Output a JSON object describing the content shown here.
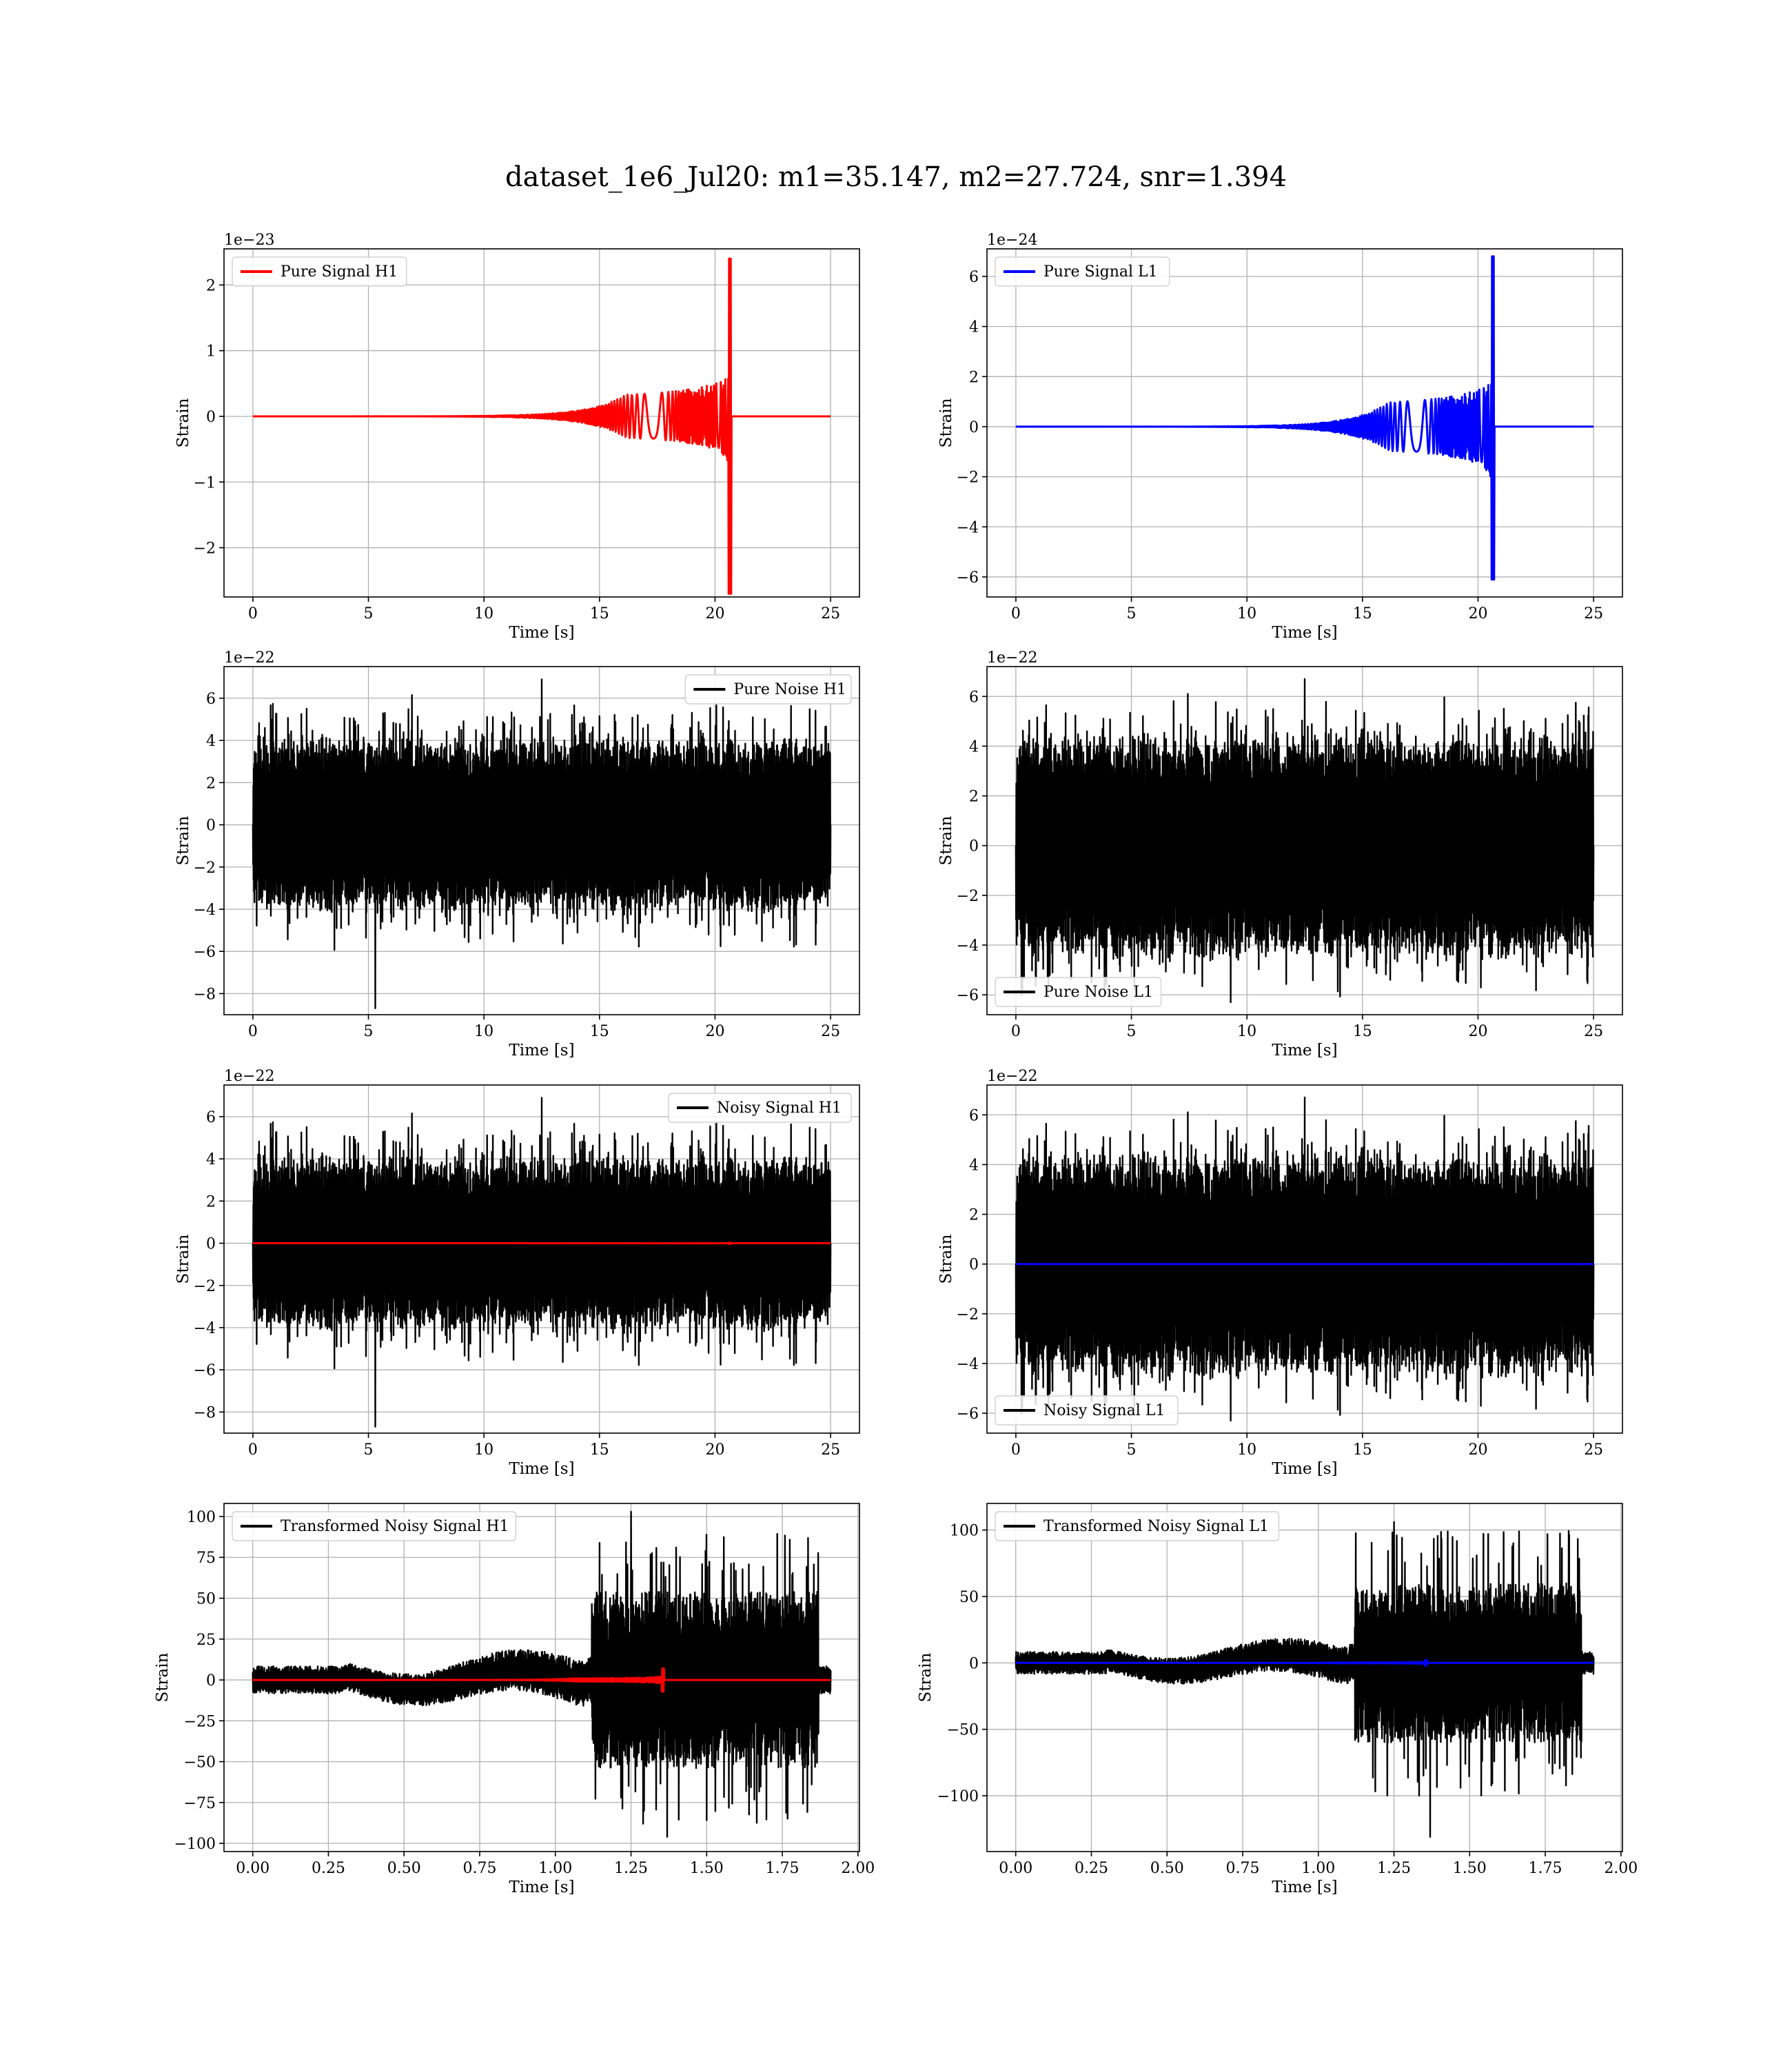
{
  "figure": {
    "title": "dataset_1e6_Jul20: m1=35.147, m2=27.724, snr=1.394"
  },
  "colors": {
    "h1_signal": "#ff0000",
    "l1_signal": "#0000ff",
    "noise": "#000000",
    "grid": "#b0b0b0"
  },
  "chart_data": [
    {
      "id": "pure-signal-h1",
      "type": "line",
      "xlabel": "Time [s]",
      "ylabel": "Strain",
      "offset_text": "1e−23",
      "xlim": [
        -1.25,
        26.25
      ],
      "ylim": [
        -2.75,
        2.55
      ],
      "xticks": [
        0,
        5,
        10,
        15,
        20,
        25
      ],
      "xtick_labels": [
        "0",
        "5",
        "10",
        "15",
        "20",
        "25"
      ],
      "yticks": [
        -2,
        -1,
        0,
        1,
        2
      ],
      "ytick_labels": [
        "−2",
        "−1",
        "0",
        "1",
        "2"
      ],
      "legend_position": "upper left",
      "series": [
        {
          "name": "Pure Signal H1",
          "color": "#ff0000",
          "kind": "chirp",
          "x_start": 0,
          "x_end": 25,
          "merger": 20.7,
          "peak_pos": 2.4,
          "peak_neg": -2.7,
          "pre_amp": 0.95
        }
      ]
    },
    {
      "id": "pure-signal-l1",
      "type": "line",
      "xlabel": "Time [s]",
      "ylabel": "Strain",
      "offset_text": "1e−24",
      "xlim": [
        -1.25,
        26.25
      ],
      "ylim": [
        -6.8,
        7.1
      ],
      "xticks": [
        0,
        5,
        10,
        15,
        20,
        25
      ],
      "xtick_labels": [
        "0",
        "5",
        "10",
        "15",
        "20",
        "25"
      ],
      "yticks": [
        -6,
        -4,
        -2,
        0,
        2,
        4,
        6
      ],
      "ytick_labels": [
        "−6",
        "−4",
        "−2",
        "0",
        "2",
        "4",
        "6"
      ],
      "legend_position": "upper left",
      "series": [
        {
          "name": "Pure Signal L1",
          "color": "#0000ff",
          "kind": "chirp",
          "x_start": 0,
          "x_end": 25,
          "merger": 20.7,
          "peak_pos": 6.8,
          "peak_neg": -6.1,
          "pre_amp": 2.8
        }
      ]
    },
    {
      "id": "pure-noise-h1",
      "type": "line",
      "xlabel": "Time [s]",
      "ylabel": "Strain",
      "offset_text": "1e−22",
      "xlim": [
        -1.25,
        26.25
      ],
      "ylim": [
        -9.0,
        7.5
      ],
      "xticks": [
        0,
        5,
        10,
        15,
        20,
        25
      ],
      "xtick_labels": [
        "0",
        "5",
        "10",
        "15",
        "20",
        "25"
      ],
      "yticks": [
        -8,
        -6,
        -4,
        -2,
        0,
        2,
        4,
        6
      ],
      "ytick_labels": [
        "−8",
        "−6",
        "−4",
        "−2",
        "0",
        "2",
        "4",
        "6"
      ],
      "legend_position": "upper right",
      "series": [
        {
          "name": "Pure Noise H1",
          "color": "#000000",
          "kind": "noise",
          "x_start": 0,
          "x_end": 25,
          "band": 2.9,
          "spike_max": 6.9,
          "spike_min": -8.7,
          "spike_at": 5.3,
          "seed": 11
        }
      ]
    },
    {
      "id": "pure-noise-l1",
      "type": "line",
      "xlabel": "Time [s]",
      "ylabel": "Strain",
      "offset_text": "1e−22",
      "xlim": [
        -1.25,
        26.25
      ],
      "ylim": [
        -6.8,
        7.2
      ],
      "xticks": [
        0,
        5,
        10,
        15,
        20,
        25
      ],
      "xtick_labels": [
        "0",
        "5",
        "10",
        "15",
        "20",
        "25"
      ],
      "yticks": [
        -6,
        -4,
        -2,
        0,
        2,
        4,
        6
      ],
      "ytick_labels": [
        "−6",
        "−4",
        "−2",
        "0",
        "2",
        "4",
        "6"
      ],
      "legend_position": "lower left",
      "series": [
        {
          "name": "Pure Noise L1",
          "color": "#000000",
          "kind": "noise",
          "x_start": 0,
          "x_end": 25,
          "band": 3.2,
          "spike_max": 6.7,
          "spike_min": -6.3,
          "spike_at": 9.3,
          "seed": 23
        }
      ]
    },
    {
      "id": "noisy-signal-h1",
      "type": "line",
      "xlabel": "Time [s]",
      "ylabel": "Strain",
      "offset_text": "1e−22",
      "xlim": [
        -1.25,
        26.25
      ],
      "ylim": [
        -9.0,
        7.5
      ],
      "xticks": [
        0,
        5,
        10,
        15,
        20,
        25
      ],
      "xtick_labels": [
        "0",
        "5",
        "10",
        "15",
        "20",
        "25"
      ],
      "yticks": [
        -8,
        -6,
        -4,
        -2,
        0,
        2,
        4,
        6
      ],
      "ytick_labels": [
        "−8",
        "−6",
        "−4",
        "−2",
        "0",
        "2",
        "4",
        "6"
      ],
      "legend_position": "upper right",
      "series": [
        {
          "name": "Noisy Signal H1",
          "color": "#000000",
          "kind": "noise",
          "x_start": 0,
          "x_end": 25,
          "band": 2.9,
          "spike_max": 6.9,
          "spike_min": -8.7,
          "spike_at": 5.3,
          "seed": 11
        },
        {
          "name": "",
          "color": "#ff0000",
          "kind": "chirp",
          "x_start": 0,
          "x_end": 25,
          "merger": 20.7,
          "peak_pos": 0.024,
          "peak_neg": -0.027,
          "pre_amp": 0.0095
        }
      ]
    },
    {
      "id": "noisy-signal-l1",
      "type": "line",
      "xlabel": "Time [s]",
      "ylabel": "Strain",
      "offset_text": "1e−22",
      "xlim": [
        -1.25,
        26.25
      ],
      "ylim": [
        -6.8,
        7.2
      ],
      "xticks": [
        0,
        5,
        10,
        15,
        20,
        25
      ],
      "xtick_labels": [
        "0",
        "5",
        "10",
        "15",
        "20",
        "25"
      ],
      "yticks": [
        -6,
        -4,
        -2,
        0,
        2,
        4,
        6
      ],
      "ytick_labels": [
        "−6",
        "−4",
        "−2",
        "0",
        "2",
        "4",
        "6"
      ],
      "legend_position": "lower left",
      "series": [
        {
          "name": "Noisy Signal L1",
          "color": "#000000",
          "kind": "noise",
          "x_start": 0,
          "x_end": 25,
          "band": 3.2,
          "spike_max": 6.7,
          "spike_min": -6.3,
          "spike_at": 9.3,
          "seed": 23
        },
        {
          "name": "",
          "color": "#0000ff",
          "kind": "chirp",
          "x_start": 0,
          "x_end": 25,
          "merger": 20.7,
          "peak_pos": 0.0068,
          "peak_neg": -0.0061,
          "pre_amp": 0.0028
        }
      ]
    },
    {
      "id": "transformed-h1",
      "type": "line",
      "xlabel": "Time [s]",
      "ylabel": "Strain",
      "offset_text": "",
      "xlim": [
        -0.095,
        2.005
      ],
      "ylim": [
        -105,
        108
      ],
      "xticks": [
        0,
        0.25,
        0.5,
        0.75,
        1.0,
        1.25,
        1.5,
        1.75,
        2.0
      ],
      "xtick_labels": [
        "0.00",
        "0.25",
        "0.50",
        "0.75",
        "1.00",
        "1.25",
        "1.50",
        "1.75",
        "2.00"
      ],
      "yticks": [
        -100,
        -75,
        -50,
        -25,
        0,
        25,
        50,
        75,
        100
      ],
      "ytick_labels": [
        "−100",
        "−75",
        "−50",
        "−25",
        "0",
        "25",
        "50",
        "75",
        "100"
      ],
      "legend_position": "upper left",
      "series": [
        {
          "name": "Transformed Noisy Signal H1",
          "color": "#000000",
          "kind": "whitened",
          "x_start": 0,
          "x_end": 1.91,
          "jump_at": 1.12,
          "drop_at": 1.87,
          "low_amp": 7,
          "mid_amp": 12,
          "high_amp": 45,
          "spike_max": 103,
          "spike_min": -96,
          "seed": 5
        },
        {
          "name": "",
          "color": "#ff0000",
          "kind": "chirp",
          "x_start": 0,
          "x_end": 1.91,
          "merger": 1.36,
          "peak_pos": 7,
          "peak_neg": -7,
          "pre_amp": 3
        }
      ]
    },
    {
      "id": "transformed-l1",
      "type": "line",
      "xlabel": "Time [s]",
      "ylabel": "Strain",
      "offset_text": "",
      "xlim": [
        -0.095,
        2.005
      ],
      "ylim": [
        -142,
        120
      ],
      "xticks": [
        0,
        0.25,
        0.5,
        0.75,
        1.0,
        1.25,
        1.5,
        1.75,
        2.0
      ],
      "xtick_labels": [
        "0.00",
        "0.25",
        "0.50",
        "0.75",
        "1.00",
        "1.25",
        "1.50",
        "1.75",
        "2.00"
      ],
      "yticks": [
        -100,
        -50,
        0,
        50,
        100
      ],
      "ytick_labels": [
        "−100",
        "−50",
        "0",
        "50",
        "100"
      ],
      "legend_position": "upper left",
      "series": [
        {
          "name": "Transformed Noisy Signal L1",
          "color": "#000000",
          "kind": "whitened",
          "x_start": 0,
          "x_end": 1.91,
          "jump_at": 1.12,
          "drop_at": 1.87,
          "low_amp": 7,
          "mid_amp": 12,
          "high_amp": 50,
          "spike_max": 106,
          "spike_min": -131,
          "seed": 9
        },
        {
          "name": "",
          "color": "#0000ff",
          "kind": "chirp",
          "x_start": 0,
          "x_end": 1.91,
          "merger": 1.36,
          "peak_pos": 2,
          "peak_neg": -2,
          "pre_amp": 1
        }
      ]
    }
  ]
}
